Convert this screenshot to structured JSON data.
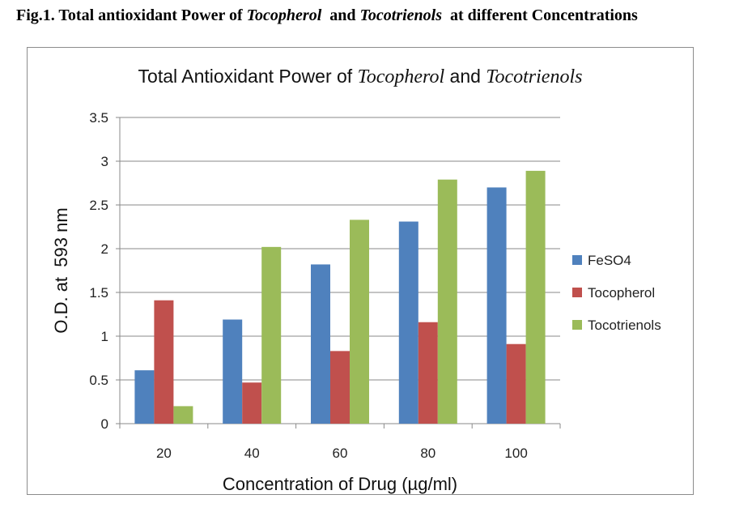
{
  "caption": {
    "prefix": "Fig.1. Total antioxidant Power of ",
    "italic1": "Tocopherol",
    "middle": "  and ",
    "italic2": "Tocotrienols",
    "suffix": "  at different Concentrations"
  },
  "chart_data": {
    "type": "bar",
    "title_parts": [
      {
        "text": "Total Antioxidant Power of ",
        "italic": false
      },
      {
        "text": "Tocopherol",
        "italic": true
      },
      {
        "text": " and ",
        "italic": false
      },
      {
        "text": "Tocotrienols",
        "italic": true
      }
    ],
    "xlabel": "Concentration of Drug (µg/ml)",
    "ylabel": "O.D. at  593 nm",
    "categories": [
      "20",
      "40",
      "60",
      "80",
      "100"
    ],
    "ylim": [
      0,
      3.5
    ],
    "yticks": [
      0,
      0.5,
      1,
      1.5,
      2,
      2.5,
      3,
      3.5
    ],
    "ytick_labels": [
      "0",
      "0.5",
      "1",
      "1.5",
      "2",
      "2.5",
      "3",
      "3.5"
    ],
    "grid": true,
    "legend_position": "right",
    "series": [
      {
        "name": "FeSO4",
        "color": "#4f81bd",
        "values": [
          0.61,
          1.19,
          1.82,
          2.31,
          2.7
        ]
      },
      {
        "name": "Tocopherol",
        "color": "#c0504d",
        "values": [
          1.41,
          0.47,
          0.83,
          1.16,
          0.91
        ]
      },
      {
        "name": "Tocotrienols",
        "color": "#9bbb59",
        "values": [
          0.2,
          2.02,
          2.33,
          2.79,
          2.89
        ]
      }
    ]
  }
}
